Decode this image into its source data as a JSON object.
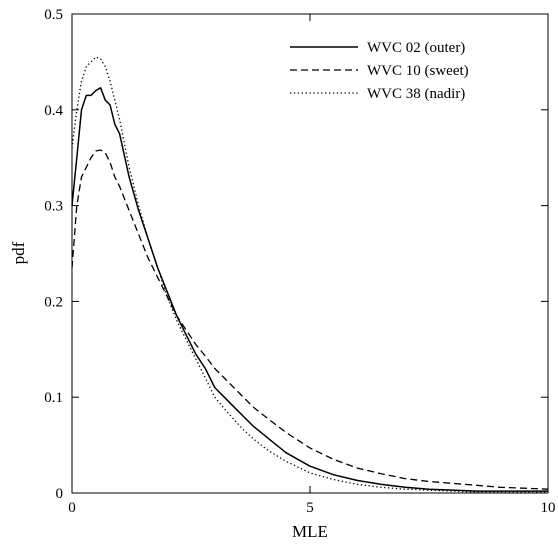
{
  "chart_data": {
    "type": "line",
    "title": "",
    "xlabel": "MLE",
    "ylabel": "pdf",
    "xlim": [
      0,
      10
    ],
    "ylim": [
      0,
      0.5
    ],
    "x_ticks": [
      "0",
      "5",
      "10"
    ],
    "y_ticks": [
      "0",
      "0.1",
      "0.2",
      "0.3",
      "0.4",
      "0.5"
    ],
    "grid": false,
    "legend_position": "top-right",
    "series": [
      {
        "name": "WVC 02 (outer)",
        "dash": "solid",
        "x": [
          0,
          0.1,
          0.2,
          0.3,
          0.4,
          0.5,
          0.6,
          0.7,
          0.8,
          0.9,
          1.0,
          1.2,
          1.4,
          1.6,
          1.8,
          2.0,
          2.2,
          2.4,
          2.6,
          2.8,
          3.0,
          3.2,
          3.4,
          3.6,
          3.8,
          4.0,
          4.2,
          4.5,
          5.0,
          5.5,
          6.0,
          6.5,
          7.0,
          7.5,
          8.0,
          8.5,
          9.0,
          9.5,
          10.0
        ],
        "y": [
          0.3,
          0.35,
          0.4,
          0.415,
          0.415,
          0.42,
          0.423,
          0.41,
          0.405,
          0.385,
          0.375,
          0.33,
          0.295,
          0.265,
          0.235,
          0.21,
          0.185,
          0.165,
          0.145,
          0.13,
          0.11,
          0.1,
          0.09,
          0.08,
          0.07,
          0.062,
          0.054,
          0.042,
          0.028,
          0.019,
          0.013,
          0.009,
          0.006,
          0.004,
          0.003,
          0.002,
          0.002,
          0.002,
          0.002
        ]
      },
      {
        "name": "WVC 10 (sweet)",
        "dash": "dashed",
        "x": [
          0,
          0.1,
          0.2,
          0.3,
          0.4,
          0.5,
          0.6,
          0.7,
          0.8,
          0.9,
          1.0,
          1.2,
          1.4,
          1.6,
          1.8,
          2.0,
          2.2,
          2.4,
          2.6,
          2.8,
          3.0,
          3.2,
          3.4,
          3.6,
          3.8,
          4.0,
          4.5,
          5.0,
          5.5,
          6.0,
          6.5,
          7.0,
          7.5,
          8.0,
          8.5,
          9.0,
          9.5,
          10.0
        ],
        "y": [
          0.235,
          0.3,
          0.33,
          0.34,
          0.35,
          0.357,
          0.358,
          0.355,
          0.345,
          0.33,
          0.32,
          0.295,
          0.27,
          0.245,
          0.225,
          0.205,
          0.185,
          0.17,
          0.155,
          0.143,
          0.13,
          0.12,
          0.11,
          0.1,
          0.09,
          0.082,
          0.063,
          0.047,
          0.035,
          0.026,
          0.02,
          0.015,
          0.012,
          0.01,
          0.008,
          0.006,
          0.005,
          0.004
        ]
      },
      {
        "name": "WVC 38 (nadir)",
        "dash": "dotted",
        "x": [
          0,
          0.1,
          0.2,
          0.3,
          0.4,
          0.5,
          0.6,
          0.7,
          0.8,
          0.9,
          1.0,
          1.2,
          1.4,
          1.6,
          1.8,
          2.0,
          2.2,
          2.4,
          2.6,
          2.8,
          3.0,
          3.2,
          3.4,
          3.6,
          3.8,
          4.0,
          4.2,
          4.5,
          5.0,
          5.5,
          6.0,
          6.5,
          7.0,
          7.5,
          8.0,
          8.5,
          9.0,
          9.5,
          10.0
        ],
        "y": [
          0.36,
          0.4,
          0.43,
          0.445,
          0.45,
          0.455,
          0.453,
          0.445,
          0.43,
          0.41,
          0.39,
          0.34,
          0.3,
          0.265,
          0.235,
          0.205,
          0.18,
          0.16,
          0.14,
          0.12,
          0.1,
          0.088,
          0.077,
          0.066,
          0.057,
          0.049,
          0.042,
          0.033,
          0.021,
          0.014,
          0.009,
          0.006,
          0.004,
          0.003,
          0.002,
          0.001,
          0.001,
          0.001,
          0.001
        ]
      }
    ]
  }
}
